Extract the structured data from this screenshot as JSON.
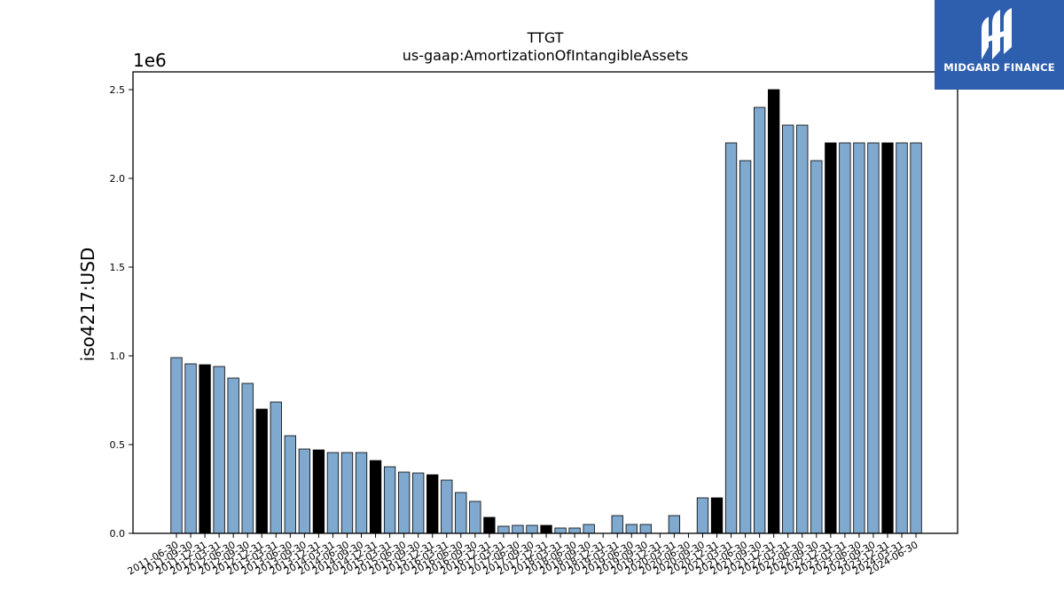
{
  "logo": {
    "text": "MIDGARD FINANCE",
    "icon": "midgard-logo-icon",
    "background": "#2e5fae"
  },
  "chart_data": {
    "type": "bar",
    "title": "TTGT",
    "subtitle": "us-gaap:AmortizationOfIntangibleAssets",
    "ylabel": "iso4217:USD",
    "xlabel": "",
    "y_scale_label": "1e6",
    "ylim": [
      0,
      2.6
    ],
    "yticks": [
      0.0,
      0.5,
      1.0,
      1.5,
      2.0,
      2.5
    ],
    "ytick_labels": [
      "0.0",
      "0.5",
      "1.0",
      "1.5",
      "2.0",
      "2.5"
    ],
    "grid": false,
    "colors": {
      "bar": "#7fa9cf",
      "highlight": "#000000",
      "edge": "#000000"
    },
    "categories": [
      "2011-06-30",
      "2011-09-30",
      "2011-12-31",
      "2012-03-31",
      "2012-06-30",
      "2012-09-30",
      "2012-12-31",
      "2013-03-31",
      "2013-06-30",
      "2013-09-30",
      "2013-12-31",
      "2014-03-31",
      "2014-06-30",
      "2014-09-30",
      "2014-12-31",
      "2015-03-31",
      "2015-06-30",
      "2015-09-30",
      "2015-12-31",
      "2016-03-31",
      "2016-06-30",
      "2016-09-30",
      "2016-12-31",
      "2017-03-31",
      "2017-06-30",
      "2017-09-30",
      "2017-12-31",
      "2018-03-31",
      "2018-06-30",
      "2018-09-30",
      "2018-12-31",
      "2019-03-31",
      "2019-06-30",
      "2019-09-30",
      "2019-12-31",
      "2020-03-31",
      "2020-06-30",
      "2020-09-30",
      "2020-12-31",
      "2021-03-31",
      "2021-06-30",
      "2021-09-30",
      "2021-12-31",
      "2022-03-31",
      "2022-06-30",
      "2022-09-30",
      "2022-12-31",
      "2023-03-31",
      "2023-06-30",
      "2023-09-30",
      "2023-12-31",
      "2024-03-31",
      "2024-06-30"
    ],
    "tick_labels": [
      "2011-06-30",
      "2011-09-30",
      "2011-12-31",
      "2012-03-31",
      "2012-06-30",
      "2012-09-30",
      "2012-12-31",
      "2013-03-31",
      "2013-06-30",
      "2013-09-30",
      "2013-12-31",
      "2014-03-31",
      "2014-06-30",
      "2014-09-30",
      "2014-12-31",
      "2015-03-31",
      "2015-06-30",
      "2015-09-30",
      "2015-12-31",
      "2016-03-31",
      "2016-06-30",
      "2016-09-30",
      "2016-12-31",
      "2017-03-31",
      "2017-06-30",
      "2017-09-30",
      "2017-12-31",
      "2018-03-31",
      "2018-06-30",
      "2018-09-30",
      "2018-12-31",
      "2019-03-31",
      "2019-06-30",
      "2019-09-30",
      "2019-12-31",
      "2020-03-31",
      "2020-06-30",
      "2020-09-30",
      "2020-12-31",
      "2021-03-31",
      "2021-06-30",
      "2021-09-30",
      "2021-12-31",
      "2022-03-31",
      "2022-06-30",
      "2022-09-30",
      "2022-12-31",
      "2023-03-31",
      "2023-06-30",
      "2023-09-30",
      "2023-12-31",
      "2024-03-31",
      "2024-06-30"
    ],
    "values": [
      0.99,
      0.955,
      0.95,
      0.94,
      0.875,
      0.845,
      0.7,
      0.74,
      0.55,
      0.475,
      0.47,
      0.455,
      0.455,
      0.455,
      0.41,
      0.375,
      0.345,
      0.34,
      0.33,
      0.3,
      0.23,
      0.18,
      0.09,
      0.04,
      0.045,
      0.045,
      0.045,
      0.03,
      0.03,
      0.05,
      0.0,
      0.1,
      0.05,
      0.05,
      0.0,
      0.1,
      0.0,
      0.2,
      0.2,
      2.2,
      2.1,
      2.4,
      2.5,
      2.3,
      2.3,
      2.1,
      2.2,
      2.2,
      2.2,
      2.2,
      2.2,
      2.2,
      2.2
    ],
    "highlight": [
      false,
      false,
      true,
      false,
      false,
      false,
      true,
      false,
      false,
      false,
      true,
      false,
      false,
      false,
      true,
      false,
      false,
      false,
      true,
      false,
      false,
      false,
      true,
      false,
      false,
      false,
      true,
      false,
      false,
      false,
      true,
      false,
      false,
      false,
      true,
      false,
      false,
      false,
      true,
      false,
      false,
      false,
      true,
      false,
      false,
      false,
      true,
      false,
      false,
      false,
      true,
      false,
      false
    ]
  }
}
